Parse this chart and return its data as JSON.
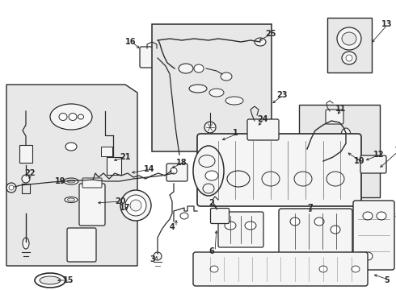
{
  "bg_color": "#ffffff",
  "lc": "#2a2a2a",
  "fig_width": 4.9,
  "fig_height": 3.6,
  "dpi": 100,
  "box_fill": "#e8e8e8",
  "part_fill": "#f5f5f5",
  "label_font": 7.0
}
